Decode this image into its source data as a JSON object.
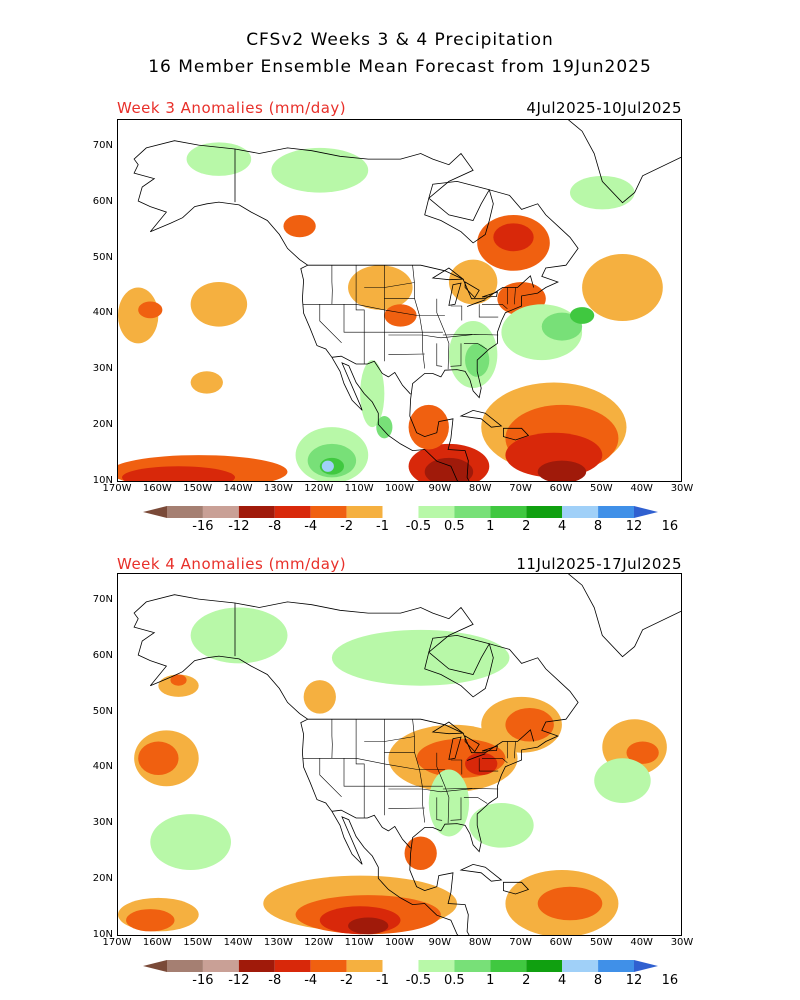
{
  "header": {
    "title_line1": "CFSv2 Weeks 3 & 4 Precipitation",
    "title_line2": "16 Member Ensemble Mean Forecast from 19Jun2025"
  },
  "panels": [
    {
      "label": "Week 3 Anomalies (mm/day)",
      "date_range": "4Jul2025-10Jul2025",
      "field": [
        {
          "level": "-1",
          "lon": -165,
          "lat": 40,
          "rx": 5,
          "ry": 5
        },
        {
          "level": "-1",
          "lon": -145,
          "lat": 42,
          "rx": 7,
          "ry": 4
        },
        {
          "level": "-1",
          "lon": -148,
          "lat": 28,
          "rx": 4,
          "ry": 2
        },
        {
          "level": "-2",
          "lon": -162,
          "lat": 41,
          "rx": 3,
          "ry": 1.5
        },
        {
          "level": "-2",
          "lon": -125,
          "lat": 56,
          "rx": 4,
          "ry": 2
        },
        {
          "level": "-1",
          "lon": -105,
          "lat": 45,
          "rx": 8,
          "ry": 4
        },
        {
          "level": "-2",
          "lon": -100,
          "lat": 40,
          "rx": 4,
          "ry": 2
        },
        {
          "level": "-1",
          "lon": -82,
          "lat": 46,
          "rx": 6,
          "ry": 4
        },
        {
          "level": "-2",
          "lon": -72,
          "lat": 53,
          "rx": 9,
          "ry": 5
        },
        {
          "level": "-4",
          "lon": -72,
          "lat": 54,
          "rx": 5,
          "ry": 2.5
        },
        {
          "level": "-2",
          "lon": -70,
          "lat": 43,
          "rx": 6,
          "ry": 3
        },
        {
          "level": "-1",
          "lon": -45,
          "lat": 45,
          "rx": 10,
          "ry": 6
        },
        {
          "level": "1",
          "lon": -65,
          "lat": 37,
          "rx": 10,
          "ry": 5
        },
        {
          "level": "2",
          "lon": -60,
          "lat": 38,
          "rx": 5,
          "ry": 2.5
        },
        {
          "level": "4",
          "lon": -55,
          "lat": 40,
          "rx": 3,
          "ry": 1.5
        },
        {
          "level": "1",
          "lon": -82,
          "lat": 33,
          "rx": 6,
          "ry": 6
        },
        {
          "level": "2",
          "lon": -81,
          "lat": 32,
          "rx": 3,
          "ry": 3
        },
        {
          "level": "1",
          "lon": -120,
          "lat": 66,
          "rx": 12,
          "ry": 4
        },
        {
          "level": "1",
          "lon": -145,
          "lat": 68,
          "rx": 8,
          "ry": 3
        },
        {
          "level": "1",
          "lon": -50,
          "lat": 62,
          "rx": 8,
          "ry": 3
        },
        {
          "level": "-1",
          "lon": -62,
          "lat": 20,
          "rx": 18,
          "ry": 8
        },
        {
          "level": "-2",
          "lon": -60,
          "lat": 18,
          "rx": 14,
          "ry": 6
        },
        {
          "level": "-4",
          "lon": -62,
          "lat": 15,
          "rx": 12,
          "ry": 4
        },
        {
          "level": "-8",
          "lon": -60,
          "lat": 12,
          "rx": 6,
          "ry": 2
        },
        {
          "level": "-2",
          "lon": -150,
          "lat": 12,
          "rx": 22,
          "ry": 3
        },
        {
          "level": "-4",
          "lon": -155,
          "lat": 11,
          "rx": 14,
          "ry": 2
        },
        {
          "level": "-4",
          "lon": -88,
          "lat": 13,
          "rx": 10,
          "ry": 4
        },
        {
          "level": "-8",
          "lon": -88,
          "lat": 12,
          "rx": 6,
          "ry": 2.5
        },
        {
          "level": "-2",
          "lon": -93,
          "lat": 20,
          "rx": 5,
          "ry": 4
        },
        {
          "level": "1",
          "lon": -117,
          "lat": 15,
          "rx": 9,
          "ry": 5
        },
        {
          "level": "2",
          "lon": -117,
          "lat": 14,
          "rx": 6,
          "ry": 3
        },
        {
          "level": "4",
          "lon": -117,
          "lat": 13,
          "rx": 3,
          "ry": 1.5
        },
        {
          "level": "12",
          "lon": -118,
          "lat": 13,
          "rx": 1.5,
          "ry": 1
        },
        {
          "level": "1",
          "lon": -107,
          "lat": 26,
          "rx": 3,
          "ry": 6
        },
        {
          "level": "2",
          "lon": -104,
          "lat": 20,
          "rx": 2,
          "ry": 2
        }
      ]
    },
    {
      "label": "Week 4 Anomalies (mm/day)",
      "date_range": "11Jul2025-17Jul2025",
      "field": [
        {
          "level": "-1",
          "lon": -158,
          "lat": 42,
          "rx": 8,
          "ry": 5
        },
        {
          "level": "-2",
          "lon": -160,
          "lat": 42,
          "rx": 5,
          "ry": 3
        },
        {
          "level": "-1",
          "lon": -155,
          "lat": 55,
          "rx": 5,
          "ry": 2
        },
        {
          "level": "-2",
          "lon": -155,
          "lat": 56,
          "rx": 2,
          "ry": 1
        },
        {
          "level": "-1",
          "lon": -120,
          "lat": 53,
          "rx": 4,
          "ry": 3
        },
        {
          "level": "-1",
          "lon": -87,
          "lat": 42,
          "rx": 16,
          "ry": 6
        },
        {
          "level": "-2",
          "lon": -85,
          "lat": 42,
          "rx": 11,
          "ry": 3.5
        },
        {
          "level": "-4",
          "lon": -80,
          "lat": 41,
          "rx": 4,
          "ry": 2
        },
        {
          "level": "-1",
          "lon": -70,
          "lat": 48,
          "rx": 10,
          "ry": 5
        },
        {
          "level": "-2",
          "lon": -68,
          "lat": 48,
          "rx": 6,
          "ry": 3
        },
        {
          "level": "-1",
          "lon": -42,
          "lat": 44,
          "rx": 8,
          "ry": 5
        },
        {
          "level": "-2",
          "lon": -40,
          "lat": 43,
          "rx": 4,
          "ry": 2
        },
        {
          "level": "1",
          "lon": -45,
          "lat": 38,
          "rx": 7,
          "ry": 4
        },
        {
          "level": "1",
          "lon": -75,
          "lat": 30,
          "rx": 8,
          "ry": 4
        },
        {
          "level": "1",
          "lon": -88,
          "lat": 34,
          "rx": 5,
          "ry": 6
        },
        {
          "level": "1",
          "lon": -95,
          "lat": 60,
          "rx": 22,
          "ry": 5
        },
        {
          "level": "1",
          "lon": -140,
          "lat": 64,
          "rx": 12,
          "ry": 5
        },
        {
          "level": "1",
          "lon": -152,
          "lat": 27,
          "rx": 10,
          "ry": 5
        },
        {
          "level": "-1",
          "lon": -110,
          "lat": 16,
          "rx": 24,
          "ry": 5
        },
        {
          "level": "-2",
          "lon": -108,
          "lat": 14,
          "rx": 18,
          "ry": 3.5
        },
        {
          "level": "-4",
          "lon": -110,
          "lat": 13,
          "rx": 10,
          "ry": 2.5
        },
        {
          "level": "-8",
          "lon": -108,
          "lat": 12,
          "rx": 5,
          "ry": 1.5
        },
        {
          "level": "-1",
          "lon": -60,
          "lat": 16,
          "rx": 14,
          "ry": 6
        },
        {
          "level": "-2",
          "lon": -58,
          "lat": 16,
          "rx": 8,
          "ry": 3
        },
        {
          "level": "-1",
          "lon": -160,
          "lat": 14,
          "rx": 10,
          "ry": 3
        },
        {
          "level": "-2",
          "lon": -162,
          "lat": 13,
          "rx": 6,
          "ry": 2
        },
        {
          "level": "-2",
          "lon": -95,
          "lat": 25,
          "rx": 4,
          "ry": 3
        }
      ]
    }
  ],
  "axes": {
    "lat_labels": [
      "70N",
      "60N",
      "50N",
      "40N",
      "30N",
      "20N",
      "10N"
    ],
    "lat_values": [
      70,
      60,
      50,
      40,
      30,
      20,
      10
    ],
    "lon_labels": [
      "170W",
      "160W",
      "150W",
      "140W",
      "130W",
      "120W",
      "110W",
      "100W",
      "90W",
      "80W",
      "70W",
      "60W",
      "50W",
      "40W",
      "30W"
    ],
    "lon_values": [
      -170,
      -160,
      -150,
      -140,
      -130,
      -120,
      -110,
      -100,
      -90,
      -80,
      -70,
      -60,
      -50,
      -40,
      -30
    ],
    "lon_range": [
      -170,
      -30
    ],
    "lat_range": [
      10,
      75
    ]
  },
  "legend": {
    "labels": [
      "-16",
      "-12",
      "-8",
      "-4",
      "-2",
      "-1",
      "-0.5",
      "0.5",
      "1",
      "2",
      "4",
      "8",
      "12",
      "16"
    ],
    "levels": [
      {
        "key": "-16",
        "color": "#7a4a38"
      },
      {
        "key": "-12",
        "color": "#a57f72"
      },
      {
        "key": "-8",
        "color": "#c9a096"
      },
      {
        "key": "-4",
        "color": "#a01a0a"
      },
      {
        "key": "-2",
        "color": "#d8280a"
      },
      {
        "key": "-1",
        "color": "#f06010"
      },
      {
        "key": "-0.5",
        "color": "#f5b040"
      },
      {
        "key": "0",
        "color": "#ffffff"
      },
      {
        "key": "0.5",
        "color": "#b8f8a8"
      },
      {
        "key": "1",
        "color": "#78e078"
      },
      {
        "key": "2",
        "color": "#40c840"
      },
      {
        "key": "4",
        "color": "#10a010"
      },
      {
        "key": "8",
        "color": "#a0d0f8"
      },
      {
        "key": "12",
        "color": "#4090e8"
      },
      {
        "key": "16",
        "color": "#3060d0"
      }
    ],
    "color_map": {
      "-8": "#a01a0a",
      "-4": "#d8280a",
      "-2": "#f06010",
      "-1": "#f5b040",
      "1": "#b8f8a8",
      "2": "#78e078",
      "4": "#40c840",
      "8": "#10a010",
      "12": "#a0d0f8",
      "16": "#4090e8"
    }
  }
}
